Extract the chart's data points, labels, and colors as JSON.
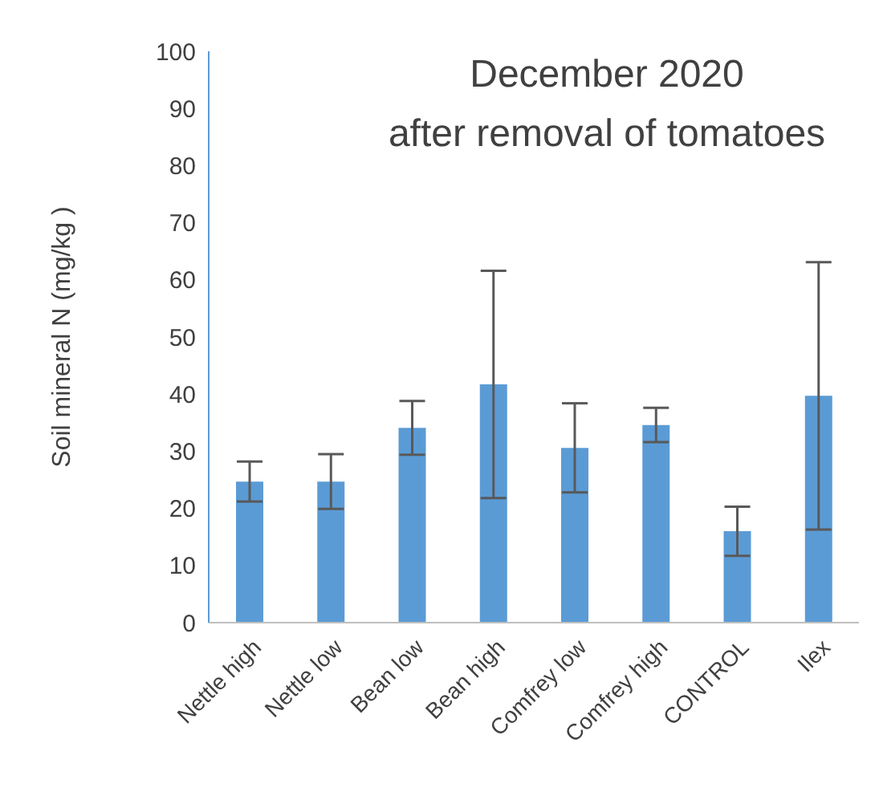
{
  "chart_data": {
    "type": "bar",
    "title": "December 2020\nafter removal of tomatoes",
    "ylabel": "Soil mineral N (mg/kg )",
    "categories": [
      "Nettle high",
      "Nettle low",
      "Bean low",
      "Bean high",
      "Comfrey low",
      "Comfrey high",
      "CONTROL",
      "Ilex"
    ],
    "values": [
      24.7,
      24.7,
      34.1,
      41.7,
      30.6,
      34.6,
      16.0,
      39.7
    ],
    "errors": [
      3.5,
      4.8,
      4.7,
      19.9,
      7.8,
      3.0,
      4.3,
      23.4
    ],
    "color": "#5b9bd5",
    "ylim": [
      0,
      100
    ],
    "yticks": [
      0,
      10,
      20,
      30,
      40,
      50,
      60,
      70,
      80,
      90,
      100
    ],
    "grid": false,
    "legend": false
  }
}
